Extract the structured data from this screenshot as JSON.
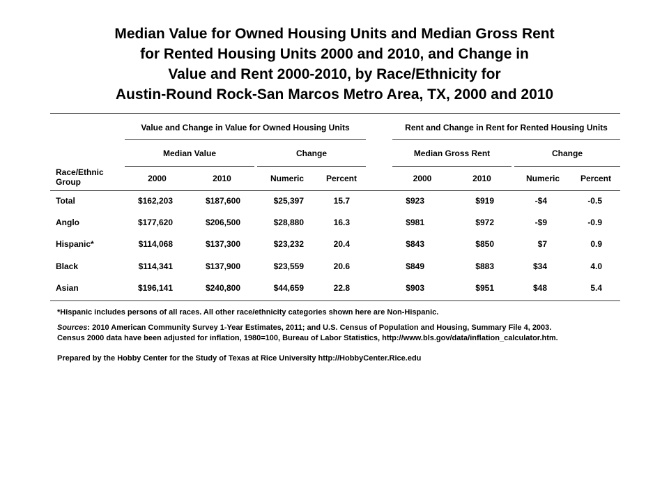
{
  "title_lines": [
    "Median Value for Owned Housing Units and Median Gross Rent",
    "for Rented Housing Units 2000 and 2010, and Change in",
    "Value and Rent 2000-2010, by Race/Ethnicity for",
    "Austin-Round Rock-San Marcos Metro Area, TX, 2000 and 2010"
  ],
  "table": {
    "row_header": "Race/Ethnic Group",
    "group_owned": "Value and Change in Value for Owned Housing Units",
    "group_rented": "Rent and Change in Rent for Rented Housing Units",
    "sub_median_value": "Median Value",
    "sub_change_owned": "Change",
    "sub_median_rent": "Median Gross Rent",
    "sub_change_rented": "Change",
    "columns": [
      "2000",
      "2010",
      "Numeric",
      "Percent",
      "2000",
      "2010",
      "Numeric",
      "Percent"
    ],
    "rows": [
      {
        "group": "Total",
        "values": [
          "$162,203",
          "$187,600",
          "$25,397",
          "15.7",
          "$923",
          "$919",
          "-$4",
          "-0.5"
        ]
      },
      {
        "group": "Anglo",
        "values": [
          "$177,620",
          "$206,500",
          "$28,880",
          "16.3",
          "$981",
          "$972",
          "-$9",
          "-0.9"
        ]
      },
      {
        "group": "Hispanic*",
        "values": [
          "$114,068",
          "$137,300",
          "$23,232",
          "20.4",
          "$843",
          "$850",
          "$7",
          "0.9"
        ]
      },
      {
        "group": "Black",
        "values": [
          "$114,341",
          "$137,900",
          "$23,559",
          "20.6",
          "$849",
          "$883",
          "$34",
          "4.0"
        ]
      },
      {
        "group": "Asian",
        "values": [
          "$196,141",
          "$240,800",
          "$44,659",
          "22.8",
          "$903",
          "$951",
          "$48",
          "5.4"
        ]
      }
    ]
  },
  "notes": {
    "hispanic_note": "*Hispanic includes persons of all races.  All other race/ethnicity categories shown here are Non-Hispanic.",
    "sources_label": "Sources",
    "sources_line1": ": 2010 American Community Survey 1-Year Estimates, 2011; and U.S. Census of Population and Housing, Summary File 4, 2003.",
    "sources_line2": "Census 2000 data have been adjusted for inflation, 1980=100, Bureau of Labor Statistics, http://www.bls.gov/data/inflation_calculator.htm.",
    "prepared_by": "Prepared by the Hobby Center for the Study of Texas at Rice University http://HobbyCenter.Rice.edu"
  }
}
